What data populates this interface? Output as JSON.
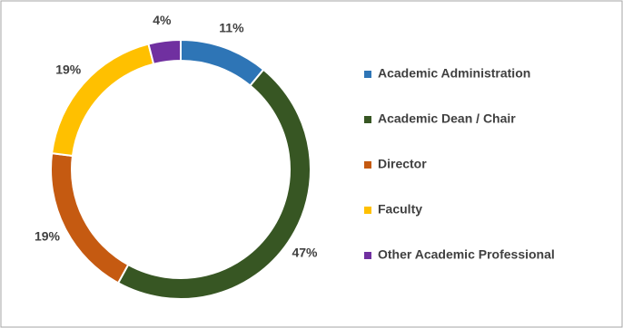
{
  "chart_data": {
    "type": "donut",
    "categories": [
      "Academic Administration",
      "Academic Dean / Chair",
      "Director",
      "Faculty",
      "Other Academic Professional"
    ],
    "values": [
      11,
      47,
      19,
      19,
      4
    ],
    "value_labels": [
      "11%",
      "47%",
      "19%",
      "19%",
      "4%"
    ],
    "colors": [
      "#2e75b6",
      "#375623",
      "#c55a11",
      "#ffc000",
      "#7030a0"
    ],
    "legend": "right"
  }
}
